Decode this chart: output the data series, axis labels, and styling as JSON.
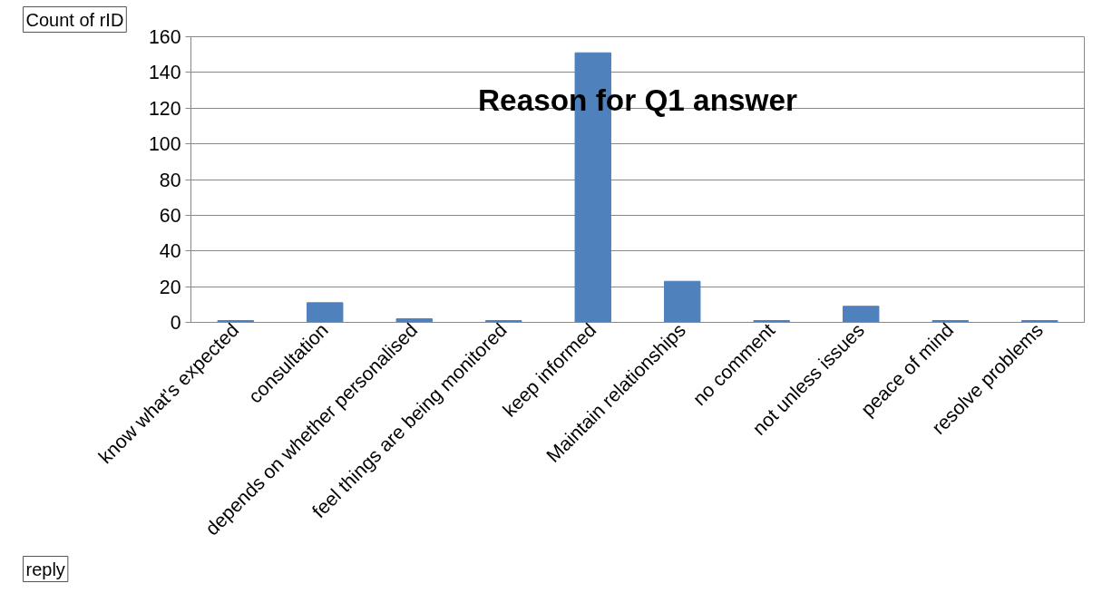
{
  "chart_data": {
    "type": "bar",
    "title": "Reason for Q1 answer",
    "ylabel": "Count of rID",
    "xlabel": "reply",
    "categories": [
      "know what's expected",
      "consultation",
      "depends on whether personalised",
      "feel things are being monitored",
      "keep informed",
      "Maintain relationships",
      "no comment",
      "not unless issues",
      "peace of mind",
      "resolve problems"
    ],
    "values": [
      1,
      11,
      2,
      1,
      151,
      23,
      1,
      9,
      1,
      1
    ],
    "color": "#4f81bd",
    "ylim": [
      0,
      160
    ],
    "yticks": [
      0,
      20,
      40,
      60,
      80,
      100,
      120,
      140,
      160
    ],
    "grid": "y"
  }
}
